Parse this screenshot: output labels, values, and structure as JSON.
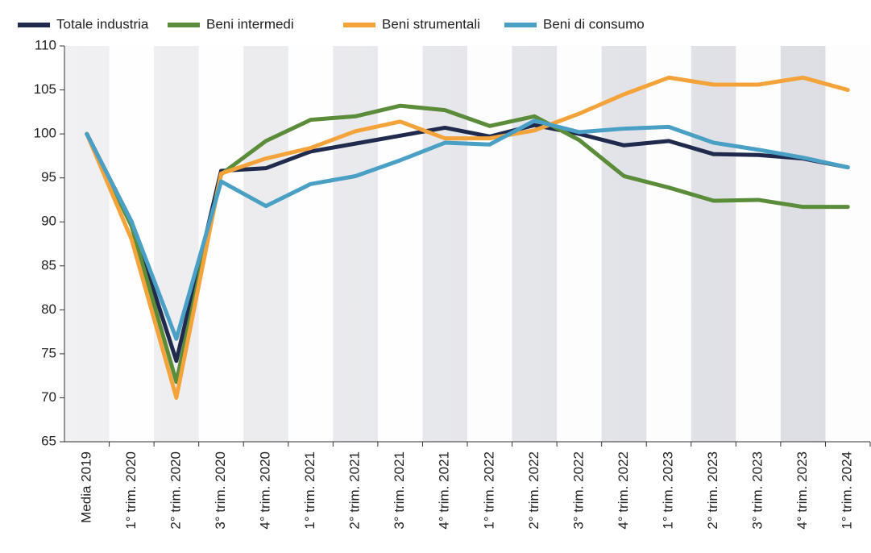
{
  "chart_data": {
    "type": "line",
    "categories": [
      "Media 2019",
      "1° trim. 2020",
      "2° trim. 2020",
      "3° trim. 2020",
      "4° trim. 2020",
      "1° trim. 2021",
      "2° trim. 2021",
      "3° trim. 2021",
      "4° trim. 2021",
      "1° trim. 2022",
      "2° trim. 2022",
      "3° trim. 2022",
      "4° trim. 2022",
      "1° trim. 2023",
      "2° trim. 2023",
      "3° trim. 2023",
      "4° trim. 2023",
      "1° trim. 2024"
    ],
    "series": [
      {
        "name": "Totale industria",
        "color": "#1f2a4d",
        "values": [
          100,
          90,
          74.2,
          95.8,
          96.1,
          98,
          98.9,
          99.8,
          100.7,
          99.7,
          101,
          100,
          98.7,
          99.2,
          97.7,
          97.6,
          97.2,
          96.2
        ]
      },
      {
        "name": "Beni intermedi",
        "color": "#5b8c3a",
        "values": [
          100,
          89.5,
          71.8,
          95.4,
          99.2,
          101.6,
          102,
          103.2,
          102.7,
          100.9,
          102,
          99.3,
          95.2,
          93.9,
          92.4,
          92.5,
          91.7,
          91.7
        ]
      },
      {
        "name": "Beni strumentali",
        "color": "#f4a33a",
        "values": [
          100,
          88,
          70,
          95.5,
          97.2,
          98.4,
          100.3,
          101.4,
          99.5,
          99.5,
          100.4,
          102.3,
          104.5,
          106.4,
          105.6,
          105.6,
          106.4,
          105
        ]
      },
      {
        "name": "Beni di consumo",
        "color": "#4aa0c4",
        "values": [
          100,
          90,
          76.7,
          94.6,
          91.8,
          94.3,
          95.2,
          97,
          99,
          98.8,
          101.5,
          100.2,
          100.6,
          100.8,
          99,
          98.2,
          97.3,
          96.2
        ]
      }
    ],
    "ylim": [
      65,
      110
    ],
    "yticks": [
      65,
      70,
      75,
      80,
      85,
      90,
      95,
      100,
      105,
      110
    ],
    "legend": "top-left"
  }
}
